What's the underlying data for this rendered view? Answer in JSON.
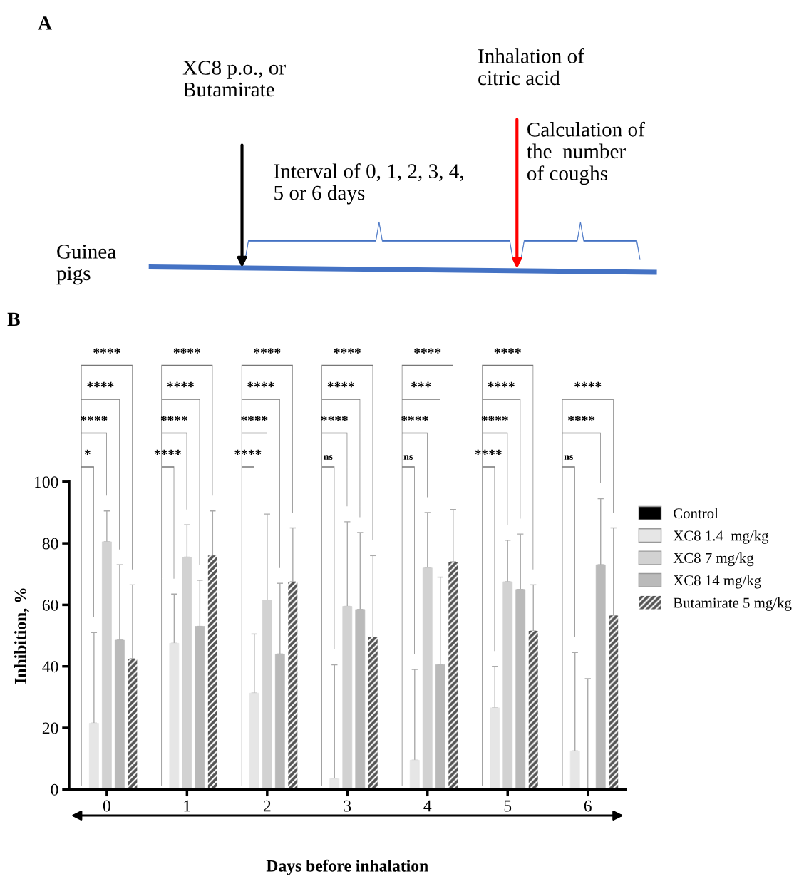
{
  "chart_data": [
    {
      "type": "other",
      "title": "A",
      "annotations": [
        "XC8 p.o., or\nButamirate",
        "Inhalation of\ncitric acid",
        "Calculation of\nthe  number\nof coughs",
        "Interval of 0, 1, 2, 3, 4,\n5 or 6 days",
        "Guinea\npigs"
      ]
    },
    {
      "type": "bar",
      "title": "B",
      "xlabel": "Days before inhalation",
      "ylabel": "Inhibition, %",
      "categories": [
        "0",
        "1",
        "2",
        "3",
        "4",
        "5",
        "6"
      ],
      "ylim": [
        0,
        100
      ],
      "yticks": [
        0,
        20,
        40,
        60,
        80,
        100
      ],
      "grid": false,
      "legend": "right",
      "series": [
        {
          "name": "Control",
          "color": "#000000",
          "values": [
            0,
            0,
            0,
            0,
            0,
            0,
            0
          ]
        },
        {
          "name": "XC8 1.4  mg/kg",
          "color": "#e6e6e6",
          "values": [
            21.5,
            47.5,
            31.3,
            3.5,
            9.5,
            26.5,
            12.5
          ],
          "errors": [
            [
              21.5,
              51
            ],
            [
              47.5,
              63.5
            ],
            [
              31.3,
              50.5
            ],
            [
              3.5,
              40.5
            ],
            [
              9.5,
              39
            ],
            [
              26.5,
              40
            ],
            [
              12.5,
              44.5
            ]
          ]
        },
        {
          "name": "XC8 7 mg/kg",
          "color": "#d2d2d2",
          "values": [
            80.5,
            75.5,
            61.5,
            59.5,
            72,
            67.5,
            0
          ],
          "errors": [
            [
              80.5,
              90.5
            ],
            [
              75.5,
              86
            ],
            [
              61.5,
              89.5
            ],
            [
              59.5,
              87
            ],
            [
              72,
              90
            ],
            [
              67.5,
              81
            ],
            [
              0,
              36
            ]
          ]
        },
        {
          "name": "XC8 14 mg/kg",
          "color": "#bababa",
          "values": [
            48.5,
            53,
            44,
            58.5,
            40.5,
            65,
            73
          ],
          "errors": [
            [
              48.5,
              73
            ],
            [
              53,
              68
            ],
            [
              44,
              67
            ],
            [
              58.5,
              83.5
            ],
            [
              40.5,
              69
            ],
            [
              65,
              83
            ],
            [
              73,
              94.5
            ]
          ]
        },
        {
          "name": "Butamirate 5 mg/kg",
          "color": "#555555",
          "values": [
            42.5,
            76,
            67.5,
            49.5,
            74,
            51.5,
            56.5
          ],
          "errors": [
            [
              42.5,
              66.5
            ],
            [
              76,
              90.5
            ],
            [
              67.5,
              85
            ],
            [
              49.5,
              76
            ],
            [
              74,
              91
            ],
            [
              51.5,
              66.5
            ],
            [
              56.5,
              85
            ]
          ]
        }
      ],
      "annotations": [
        "*",
        "****",
        "****",
        "****",
        "****",
        "****",
        "****",
        "****",
        "****",
        "****",
        "****",
        "****",
        "ns",
        "****",
        "****",
        "****",
        "ns",
        "****",
        "***",
        "****",
        "****",
        "****",
        "****",
        "****",
        "ns",
        "****",
        "****"
      ]
    }
  ]
}
